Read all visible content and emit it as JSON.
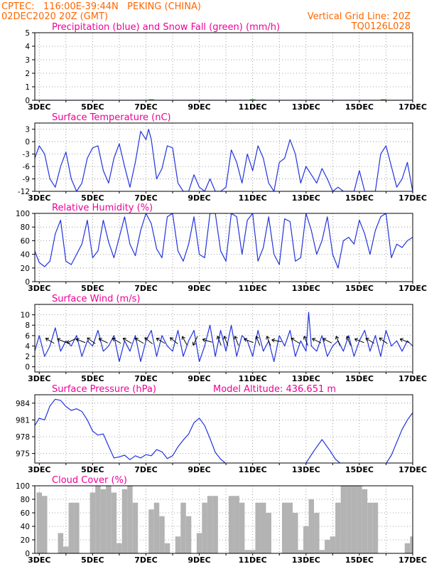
{
  "header": {
    "line1_left": "CPTEC:   116:00E-39:44N   PEKING (CHINA)",
    "line2_left": "02DEC2020 20Z (GMT)",
    "line2_right": "Vertical Grid Line: 20Z",
    "line3_right": "TQ0126L028"
  },
  "colors": {
    "header": "#ff6600",
    "title": "#ee0099",
    "line": "#2233dd",
    "snow": "#00aa00",
    "cloud": "#b3b3b3",
    "grid": "#888888"
  },
  "x_ticks": [
    "3DEC",
    "5DEC",
    "7DEC",
    "9DEC",
    "11DEC",
    "13DEC",
    "15DEC",
    "17DEC"
  ],
  "chart_data": [
    {
      "id": "precip",
      "type": "line",
      "title": "Precipitation (blue) and Snow Fall (green) (mm/h)",
      "x_range": [
        2.8333,
        17.0
      ],
      "ylim": [
        0,
        5
      ],
      "yticks": [
        0,
        1,
        2,
        3,
        4,
        5
      ],
      "series": [
        {
          "color": "#2233dd",
          "x": [
            2.83,
            17.0
          ],
          "y": [
            0,
            0
          ]
        }
      ],
      "snow_marks": [
        {
          "color": "#00aa00",
          "x": [
            7.1,
            7.3,
            10.9,
            11.1,
            15.8,
            16.0
          ],
          "y": [
            0.02,
            0.02,
            0.02,
            0.02,
            0.02,
            0.02
          ]
        }
      ]
    },
    {
      "id": "temp",
      "type": "line",
      "title": "Surface Temperature (nC)",
      "x_range": [
        2.8333,
        17.0
      ],
      "ylim": [
        -12,
        4.5
      ],
      "yticks": [
        -12,
        -9,
        -6,
        -3,
        0,
        3
      ],
      "series": [
        {
          "color": "#2233dd",
          "x": [
            2.83,
            3.0,
            3.2,
            3.4,
            3.6,
            3.8,
            4.0,
            4.2,
            4.4,
            4.6,
            4.8,
            5.0,
            5.2,
            5.4,
            5.6,
            5.8,
            6.0,
            6.2,
            6.4,
            6.6,
            6.8,
            7.0,
            7.1,
            7.2,
            7.4,
            7.6,
            7.8,
            8.0,
            8.2,
            8.4,
            8.6,
            8.8,
            9.0,
            9.2,
            9.4,
            9.6,
            9.8,
            10.0,
            10.2,
            10.4,
            10.6,
            10.8,
            11.0,
            11.2,
            11.4,
            11.6,
            11.8,
            12.0,
            12.2,
            12.4,
            12.6,
            12.8,
            13.0,
            13.2,
            13.4,
            13.6,
            13.8,
            14.0,
            14.2,
            14.4,
            14.6,
            14.8,
            15.0,
            15.2,
            15.4,
            15.6,
            15.8,
            16.0,
            16.2,
            16.4,
            16.6,
            16.8,
            17.0
          ],
          "y": [
            -4,
            -1,
            -3,
            -9,
            -11,
            -6,
            -2.5,
            -9,
            -12,
            -10,
            -4,
            -1.5,
            -1,
            -7,
            -10,
            -4,
            -0.5,
            -6,
            -11,
            -5,
            2.5,
            0.5,
            3,
            0.5,
            -9,
            -6.5,
            -1,
            -1.5,
            -10,
            -12,
            -12,
            -8,
            -11,
            -12,
            -9,
            -12,
            -12,
            -11,
            -2,
            -5,
            -10,
            -3,
            -7,
            -1,
            -4,
            -10,
            -12,
            -5,
            -4,
            0.5,
            -3,
            -10,
            -6,
            -8,
            -10,
            -6.5,
            -9,
            -12,
            -11,
            -12,
            -12,
            -12,
            -7,
            -12,
            -12,
            -12,
            -3,
            -1,
            -6,
            -11,
            -9,
            -5,
            -12
          ]
        }
      ]
    },
    {
      "id": "rh",
      "type": "line",
      "title": "Relative Humidity (%)",
      "x_range": [
        2.8333,
        17.0
      ],
      "ylim": [
        0,
        100
      ],
      "yticks": [
        0,
        20,
        40,
        60,
        80,
        100
      ],
      "series": [
        {
          "color": "#2233dd",
          "x": [
            2.83,
            3.0,
            3.2,
            3.4,
            3.6,
            3.8,
            4.0,
            4.2,
            4.4,
            4.6,
            4.8,
            5.0,
            5.2,
            5.4,
            5.6,
            5.8,
            6.0,
            6.2,
            6.4,
            6.6,
            6.8,
            7.0,
            7.2,
            7.4,
            7.6,
            7.8,
            8.0,
            8.2,
            8.4,
            8.6,
            8.8,
            9.0,
            9.2,
            9.4,
            9.6,
            9.8,
            10.0,
            10.2,
            10.4,
            10.6,
            10.8,
            11.0,
            11.2,
            11.4,
            11.6,
            11.8,
            12.0,
            12.2,
            12.4,
            12.6,
            12.8,
            13.0,
            13.2,
            13.4,
            13.6,
            13.8,
            14.0,
            14.2,
            14.4,
            14.6,
            14.8,
            15.0,
            15.2,
            15.4,
            15.6,
            15.8,
            16.0,
            16.2,
            16.4,
            16.6,
            16.8,
            17.0
          ],
          "y": [
            45,
            28,
            22,
            30,
            70,
            90,
            30,
            25,
            40,
            55,
            90,
            35,
            45,
            90,
            58,
            35,
            65,
            95,
            55,
            38,
            75,
            100,
            85,
            48,
            35,
            95,
            100,
            45,
            30,
            55,
            95,
            40,
            35,
            100,
            100,
            45,
            30,
            100,
            95,
            40,
            90,
            100,
            30,
            50,
            95,
            40,
            25,
            92,
            88,
            30,
            35,
            100,
            75,
            40,
            60,
            95,
            40,
            20,
            60,
            65,
            55,
            90,
            70,
            40,
            75,
            95,
            100,
            35,
            55,
            50,
            60,
            65
          ]
        }
      ]
    },
    {
      "id": "wind",
      "type": "line",
      "title": "Surface Wind (m/s)",
      "x_range": [
        2.8333,
        17.0
      ],
      "ylim": [
        -1,
        12
      ],
      "yticks": [
        0,
        2,
        4,
        6,
        8,
        10
      ],
      "series": [
        {
          "color": "#2233dd",
          "x": [
            2.83,
            3.0,
            3.2,
            3.4,
            3.6,
            3.8,
            4.0,
            4.2,
            4.4,
            4.6,
            4.8,
            5.0,
            5.2,
            5.4,
            5.6,
            5.8,
            6.0,
            6.2,
            6.4,
            6.6,
            6.8,
            7.0,
            7.2,
            7.4,
            7.6,
            7.8,
            8.0,
            8.2,
            8.4,
            8.6,
            8.8,
            9.0,
            9.2,
            9.4,
            9.6,
            9.8,
            10.0,
            10.2,
            10.4,
            10.6,
            10.8,
            11.0,
            11.2,
            11.4,
            11.6,
            11.8,
            12.0,
            12.2,
            12.4,
            12.6,
            12.8,
            13.0,
            13.1,
            13.2,
            13.4,
            13.6,
            13.8,
            14.0,
            14.2,
            14.4,
            14.6,
            14.8,
            15.0,
            15.2,
            15.4,
            15.6,
            15.8,
            16.0,
            16.2,
            16.4,
            16.6,
            16.8,
            17.0
          ],
          "y": [
            3,
            6,
            2,
            4,
            7.5,
            3,
            5,
            4,
            6,
            2,
            5,
            4,
            7,
            3,
            4,
            6,
            1,
            5,
            3,
            6,
            1,
            5,
            7,
            2,
            6,
            4,
            3,
            7,
            2,
            5,
            7,
            1,
            4,
            8,
            2,
            7,
            3,
            8,
            2,
            6,
            5,
            2,
            7,
            3,
            5,
            1,
            6,
            4,
            7,
            2,
            5,
            3,
            10.5,
            4,
            3,
            6,
            2,
            4,
            5,
            3,
            6,
            2,
            5,
            7,
            3,
            6,
            2,
            7,
            4,
            5,
            3,
            5,
            4
          ]
        }
      ],
      "wind_arrows": [
        {
          "x": 3.4,
          "u": -1,
          "v": 0.6
        },
        {
          "x": 3.85,
          "u": -1,
          "v": 0.4
        },
        {
          "x": 4.2,
          "u": -1,
          "v": -0.5
        },
        {
          "x": 4.55,
          "u": -1,
          "v": 0.4
        },
        {
          "x": 4.95,
          "u": -1,
          "v": 0.7
        },
        {
          "x": 5.4,
          "u": -1,
          "v": 0.5
        },
        {
          "x": 5.9,
          "u": -1,
          "v": 0.6
        },
        {
          "x": 6.3,
          "u": -1,
          "v": 0.6
        },
        {
          "x": 6.75,
          "u": -1,
          "v": 0.6
        },
        {
          "x": 7.1,
          "u": -1,
          "v": 0.8
        },
        {
          "x": 7.55,
          "u": -1,
          "v": 0.6
        },
        {
          "x": 8.05,
          "u": -1,
          "v": 0.8
        },
        {
          "x": 8.45,
          "u": -0.5,
          "v": 0.9
        },
        {
          "x": 8.85,
          "u": -0.5,
          "v": -1
        },
        {
          "x": 9.3,
          "u": -1,
          "v": 0.3
        },
        {
          "x": 9.75,
          "u": -0.4,
          "v": 1
        },
        {
          "x": 10.0,
          "u": -0.4,
          "v": 1
        },
        {
          "x": 10.4,
          "u": -0.4,
          "v": 1
        },
        {
          "x": 10.85,
          "u": -1,
          "v": 0.4
        },
        {
          "x": 11.2,
          "u": -0.4,
          "v": 1
        },
        {
          "x": 11.6,
          "u": -0.4,
          "v": 1
        },
        {
          "x": 11.9,
          "u": -1,
          "v": 0.2
        },
        {
          "x": 12.6,
          "u": -1,
          "v": 0.6
        },
        {
          "x": 13.0,
          "u": -0.4,
          "v": 1
        },
        {
          "x": 13.4,
          "u": -1,
          "v": 0.5
        },
        {
          "x": 13.8,
          "u": -1,
          "v": 0.5
        },
        {
          "x": 14.2,
          "u": -0.4,
          "v": 1
        },
        {
          "x": 14.6,
          "u": -0.4,
          "v": 1
        },
        {
          "x": 15.0,
          "u": -1,
          "v": 0.4
        },
        {
          "x": 15.4,
          "u": -1,
          "v": 0.6
        },
        {
          "x": 15.9,
          "u": -1,
          "v": 0.7
        },
        {
          "x": 16.7,
          "u": -1,
          "v": 0.4
        }
      ]
    },
    {
      "id": "pressure",
      "type": "line",
      "title": "Surface Pressure (hPa)",
      "subtitle": "Model Altitude: 436.651 m",
      "x_range": [
        2.8333,
        17.0
      ],
      "ylim": [
        973.3,
        985.5
      ],
      "yticks": [
        975,
        978,
        981,
        984
      ],
      "series": [
        {
          "color": "#2233dd",
          "x": [
            2.83,
            3.0,
            3.2,
            3.4,
            3.6,
            3.8,
            4.0,
            4.2,
            4.4,
            4.6,
            4.8,
            5.0,
            5.2,
            5.4,
            5.6,
            5.8,
            6.0,
            6.2,
            6.4,
            6.6,
            6.8,
            7.0,
            7.2,
            7.4,
            7.6,
            7.8,
            8.0,
            8.2,
            8.4,
            8.6,
            8.8,
            9.0,
            9.2,
            9.4,
            9.6,
            9.8,
            10.0,
            13.0,
            13.3,
            13.6,
            13.9,
            14.1,
            14.3,
            16.0,
            16.2,
            16.4,
            16.6,
            16.8,
            17.0
          ],
          "y": [
            980,
            981.3,
            981,
            983.5,
            984.7,
            984.5,
            983.4,
            982.7,
            983,
            982.5,
            981,
            979,
            978.3,
            978.5,
            976.3,
            974.2,
            974.4,
            974.7,
            973.9,
            974.6,
            974.2,
            974.8,
            974.6,
            975.7,
            975.3,
            974.1,
            974.6,
            976.2,
            977.4,
            978.5,
            980.5,
            981.3,
            980,
            977.7,
            975.2,
            974,
            973.2,
            973.3,
            975.5,
            977.5,
            975.5,
            974,
            973.2,
            973.2,
            974.7,
            977,
            979.3,
            981,
            982.3
          ]
        }
      ]
    },
    {
      "id": "cloud",
      "type": "bar",
      "title": "Cloud Cover (%)",
      "x_range": [
        2.8333,
        17.0
      ],
      "ylim": [
        0,
        100
      ],
      "yticks": [
        0,
        20,
        40,
        60,
        80,
        100
      ],
      "series": [
        {
          "color": "#b3b3b3",
          "bar_width": 0.2,
          "x": [
            3.0,
            3.2,
            3.4,
            3.6,
            3.8,
            4.0,
            4.2,
            4.4,
            4.6,
            4.8,
            5.0,
            5.2,
            5.4,
            5.6,
            5.8,
            6.0,
            6.2,
            6.4,
            6.6,
            6.8,
            7.0,
            7.2,
            7.4,
            7.6,
            7.8,
            8.0,
            8.2,
            8.4,
            8.6,
            8.8,
            9.0,
            9.2,
            9.4,
            9.6,
            9.8,
            10.0,
            10.2,
            10.4,
            10.6,
            10.8,
            11.0,
            11.2,
            11.4,
            11.6,
            11.8,
            12.0,
            12.2,
            12.4,
            12.6,
            12.8,
            13.0,
            13.2,
            13.4,
            13.6,
            13.8,
            14.0,
            14.2,
            14.4,
            14.6,
            14.8,
            15.0,
            15.2,
            15.4,
            15.6,
            15.8,
            16.0,
            16.2,
            16.4,
            16.6,
            16.8,
            17.0
          ],
          "y": [
            90,
            85,
            0,
            0,
            30,
            10,
            75,
            75,
            0,
            0,
            90,
            100,
            95,
            100,
            90,
            15,
            95,
            100,
            75,
            0,
            0,
            65,
            75,
            55,
            15,
            0,
            25,
            75,
            55,
            0,
            30,
            75,
            85,
            85,
            0,
            0,
            85,
            85,
            75,
            5,
            5,
            75,
            75,
            60,
            0,
            0,
            75,
            75,
            60,
            5,
            40,
            80,
            60,
            5,
            20,
            25,
            75,
            100,
            100,
            100,
            100,
            95,
            75,
            75,
            0,
            0,
            0,
            0,
            0,
            15,
            25
          ]
        }
      ]
    }
  ]
}
